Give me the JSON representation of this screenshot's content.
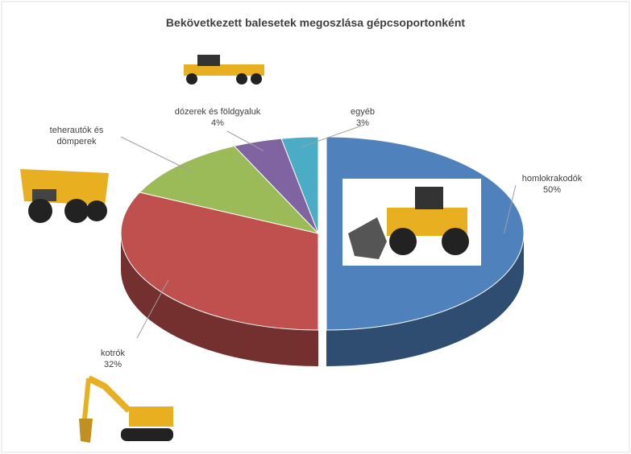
{
  "chart_data": {
    "type": "pie",
    "title": "Bekövetkezett balesetek megoszlása gépcsoportonként",
    "categories": [
      "homlokrakodók",
      "kotrók",
      "teherautók és dömperek",
      "dózerek és földgyaluk",
      "egyéb"
    ],
    "values": [
      50,
      32,
      11,
      4,
      3
    ],
    "value_labels": [
      "50%",
      "32%",
      null,
      "4%",
      "3%"
    ],
    "colors": [
      "#4f81bd",
      "#c0504d",
      "#9bbb59",
      "#8064a2",
      "#4bacc6"
    ],
    "explode": [
      true,
      false,
      false,
      false,
      false
    ]
  }
}
